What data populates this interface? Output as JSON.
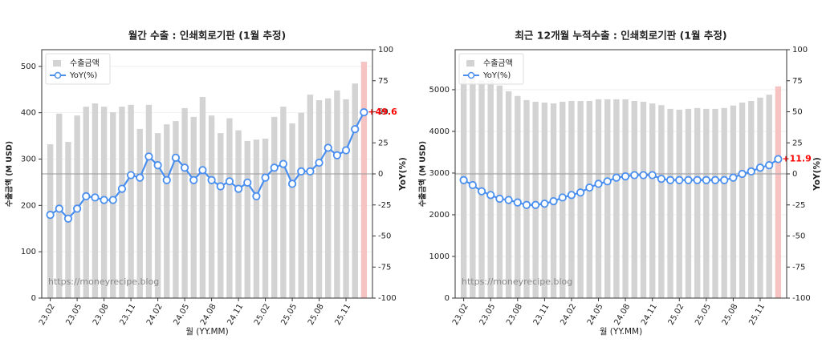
{
  "chart_data": [
    {
      "type": "bar_line",
      "title": "월간 수출 : 인쇄회로기판 (1월 추정)",
      "ylabel": "수출금액 (M USD)",
      "y2label": "YoY(%)",
      "xlabel": "월 (YY.MM)",
      "watermark": "https://moneyrecipe.blog",
      "categories": [
        "23.02",
        null,
        null,
        "23.05",
        null,
        null,
        "23.08",
        null,
        null,
        "23.11",
        null,
        null,
        "24.02",
        null,
        null,
        "24.05",
        null,
        null,
        "24.08",
        null,
        null,
        "24.11",
        null,
        null,
        "25.02",
        null,
        null,
        "25.05",
        null,
        null,
        "25.08",
        null,
        null,
        "25.11",
        null,
        null
      ],
      "series": [
        {
          "name": "수출금액",
          "color": "#d3d3d3",
          "highlight_color": "#f6c3c3",
          "values": [
            332,
            398,
            337,
            394,
            413,
            420,
            413,
            401,
            413,
            417,
            365,
            417,
            356,
            375,
            382,
            410,
            391,
            434,
            394,
            356,
            388,
            362,
            339,
            342,
            344,
            391,
            413,
            377,
            400,
            439,
            427,
            431,
            448,
            429,
            463,
            510
          ]
        },
        {
          "name": "YoY(%)",
          "axis": "y2",
          "color": "#4a8ff0",
          "values": [
            -33,
            -28,
            -36,
            -28,
            -18,
            -19,
            -21,
            -21,
            -12,
            -1,
            -3,
            14,
            7,
            -5,
            13,
            5,
            -5,
            3,
            -5,
            -10,
            -6,
            -12,
            -7,
            -18,
            -3,
            5,
            8,
            -8,
            2,
            2,
            9,
            21,
            15,
            19,
            36,
            49.6
          ],
          "value_labels": [
            null,
            null,
            null,
            null,
            null,
            null,
            null,
            null,
            null,
            null,
            null,
            null,
            null,
            null,
            null,
            null,
            null,
            null,
            null,
            null,
            null,
            null,
            null,
            null,
            null,
            null,
            null,
            null,
            null,
            null,
            null,
            null,
            null,
            null,
            null,
            "+49.6"
          ],
          "label_color": "#ff0000"
        }
      ],
      "ylim": [
        0,
        536
      ],
      "yticks": [
        0,
        100,
        200,
        300,
        400,
        500
      ],
      "y2lim": [
        -100,
        100
      ],
      "y2ticks": [
        -100,
        -75,
        -50,
        -25,
        0,
        25,
        50,
        75,
        100
      ],
      "grid": true,
      "legend": "upper left"
    },
    {
      "type": "bar_line",
      "title": "최근 12개월 누적수출 : 인쇄회로기판 (1월 추정)",
      "ylabel": "수출금액 (M USD)",
      "y2label": "YoY(%)",
      "xlabel": "월 (YY.MM)",
      "watermark": "https://moneyrecipe.blog",
      "categories": [
        "23.02",
        null,
        null,
        "23.05",
        null,
        null,
        "23.08",
        null,
        null,
        "23.11",
        null,
        null,
        "24.02",
        null,
        null,
        "24.05",
        null,
        null,
        "24.08",
        null,
        null,
        "24.11",
        null,
        null,
        "25.02",
        null,
        null,
        "25.05",
        null,
        null,
        "25.08",
        null,
        null,
        "25.11",
        null,
        null
      ],
      "series": [
        {
          "name": "수출금액",
          "color": "#d3d3d3",
          "highlight_color": "#f6c3c3",
          "values": [
            5300,
            5300,
            5230,
            5230,
            5100,
            4960,
            4850,
            4750,
            4710,
            4690,
            4670,
            4710,
            4730,
            4730,
            4730,
            4770,
            4770,
            4770,
            4770,
            4730,
            4710,
            4670,
            4630,
            4540,
            4520,
            4540,
            4560,
            4540,
            4540,
            4560,
            4620,
            4690,
            4730,
            4810,
            4880,
            5080
          ]
        },
        {
          "name": "YoY(%)",
          "axis": "y2",
          "color": "#4a8ff0",
          "values": [
            -5,
            -9,
            -14,
            -17,
            -20,
            -21,
            -23,
            -25,
            -25,
            -24,
            -22,
            -19,
            -17,
            -15,
            -11,
            -8,
            -6,
            -3,
            -2,
            -1,
            -1,
            -1,
            -4,
            -5,
            -5,
            -5,
            -5,
            -5,
            -5,
            -5,
            -3,
            0,
            2,
            5,
            7,
            11.9
          ],
          "value_labels": [
            null,
            null,
            null,
            null,
            null,
            null,
            null,
            null,
            null,
            null,
            null,
            null,
            null,
            null,
            null,
            null,
            null,
            null,
            null,
            null,
            null,
            null,
            null,
            null,
            null,
            null,
            null,
            null,
            null,
            null,
            null,
            null,
            null,
            null,
            null,
            "+11.9"
          ],
          "label_color": "#ff0000"
        }
      ],
      "ylim": [
        0,
        5960
      ],
      "yticks": [
        0,
        1000,
        2000,
        3000,
        4000,
        5000
      ],
      "y2lim": [
        -100,
        100
      ],
      "y2ticks": [
        -100,
        -75,
        -50,
        -25,
        0,
        25,
        50,
        75,
        100
      ],
      "grid": true,
      "legend": "upper left"
    }
  ]
}
